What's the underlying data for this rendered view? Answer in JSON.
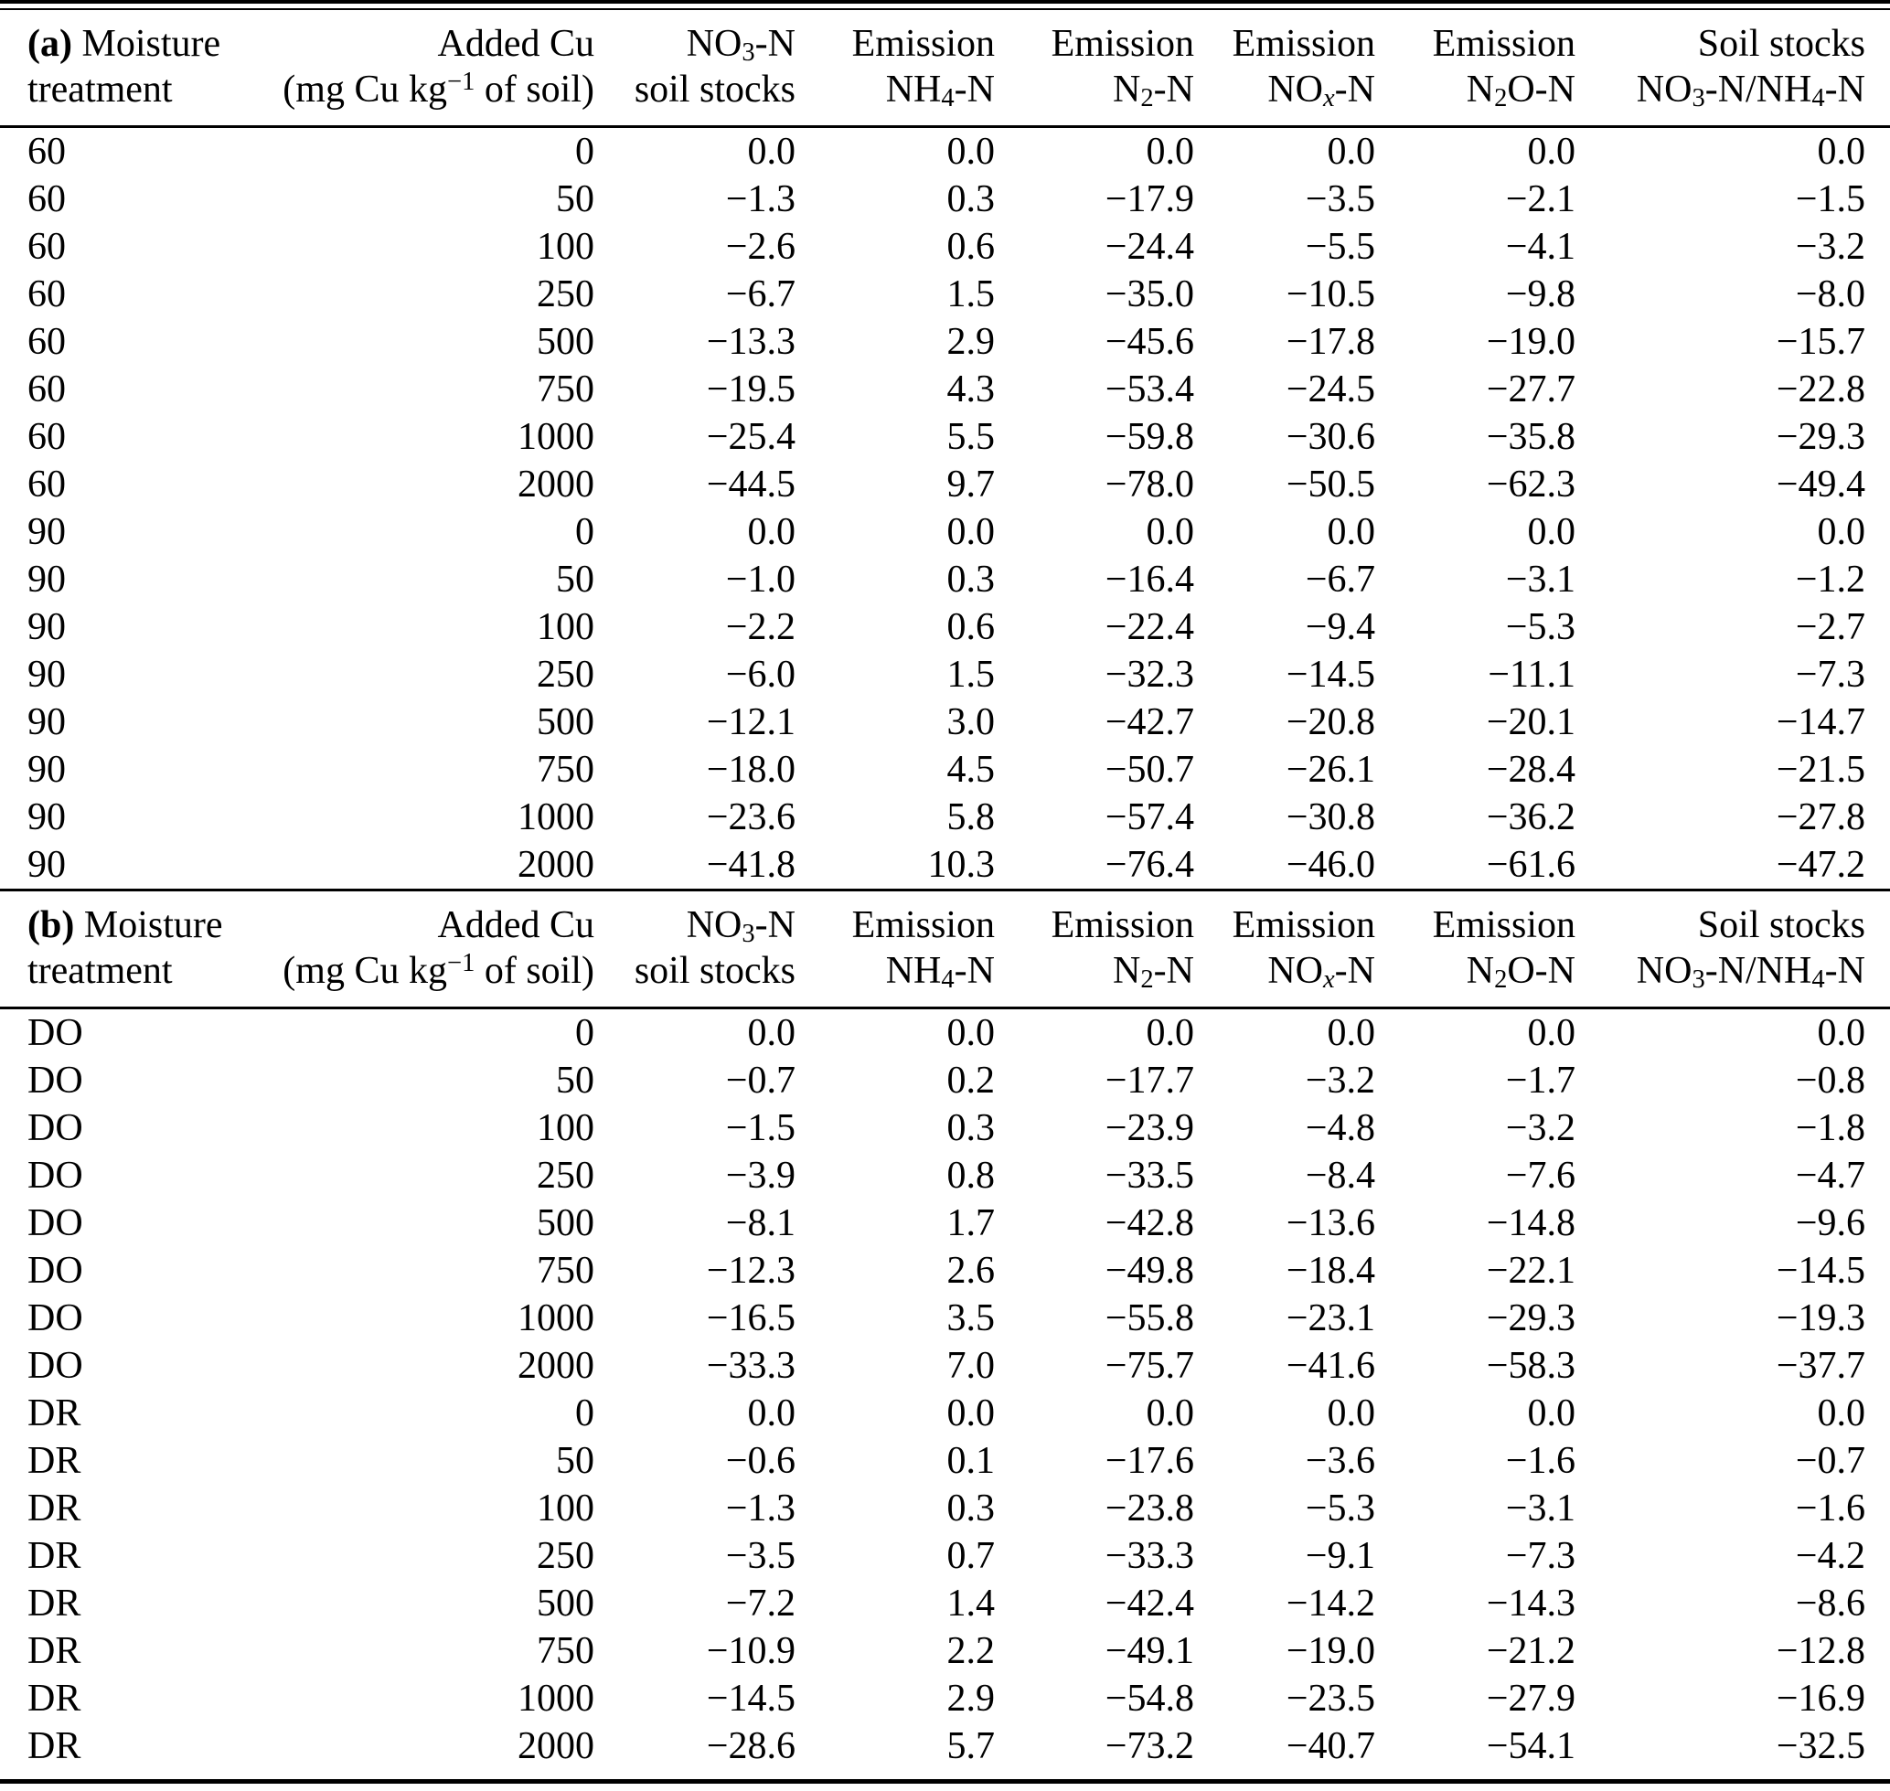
{
  "colors": {
    "text": "#000000",
    "background": "#ffffff",
    "rule": "#000000"
  },
  "tables": [
    {
      "panel": "a",
      "header": [
        {
          "line1": [
            {
              "t": "(a)",
              "s": "b"
            },
            {
              "t": " Moisture"
            }
          ],
          "line2": [
            {
              "t": "treatment"
            }
          ]
        },
        {
          "line1": [
            {
              "t": "Added Cu"
            }
          ],
          "line2": [
            {
              "t": "(mg Cu kg"
            },
            {
              "t": "−1",
              "s": "sup"
            },
            {
              "t": " of soil)"
            }
          ]
        },
        {
          "line1": [
            {
              "t": "NO"
            },
            {
              "t": "3",
              "s": "sub"
            },
            {
              "t": "-N"
            }
          ],
          "line2": [
            {
              "t": "soil stocks"
            }
          ]
        },
        {
          "line1": [
            {
              "t": "Emission"
            }
          ],
          "line2": [
            {
              "t": "NH"
            },
            {
              "t": "4",
              "s": "sub"
            },
            {
              "t": "-N"
            }
          ]
        },
        {
          "line1": [
            {
              "t": "Emission"
            }
          ],
          "line2": [
            {
              "t": "N"
            },
            {
              "t": "2",
              "s": "sub"
            },
            {
              "t": "-N"
            }
          ]
        },
        {
          "line1": [
            {
              "t": "Emission"
            }
          ],
          "line2": [
            {
              "t": "NO"
            },
            {
              "t": "x",
              "s": "subi"
            },
            {
              "t": "-N"
            }
          ]
        },
        {
          "line1": [
            {
              "t": "Emission"
            }
          ],
          "line2": [
            {
              "t": "N"
            },
            {
              "t": "2",
              "s": "sub"
            },
            {
              "t": "O-N"
            }
          ]
        },
        {
          "line1": [
            {
              "t": "Soil stocks"
            }
          ],
          "line2": [
            {
              "t": "NO"
            },
            {
              "t": "3",
              "s": "sub"
            },
            {
              "t": "-N/NH"
            },
            {
              "t": "4",
              "s": "sub"
            },
            {
              "t": "-N"
            }
          ]
        }
      ],
      "rows": [
        [
          "60",
          "0",
          "0.0",
          "0.0",
          "0.0",
          "0.0",
          "0.0",
          "0.0"
        ],
        [
          "60",
          "50",
          "−1.3",
          "0.3",
          "−17.9",
          "−3.5",
          "−2.1",
          "−1.5"
        ],
        [
          "60",
          "100",
          "−2.6",
          "0.6",
          "−24.4",
          "−5.5",
          "−4.1",
          "−3.2"
        ],
        [
          "60",
          "250",
          "−6.7",
          "1.5",
          "−35.0",
          "−10.5",
          "−9.8",
          "−8.0"
        ],
        [
          "60",
          "500",
          "−13.3",
          "2.9",
          "−45.6",
          "−17.8",
          "−19.0",
          "−15.7"
        ],
        [
          "60",
          "750",
          "−19.5",
          "4.3",
          "−53.4",
          "−24.5",
          "−27.7",
          "−22.8"
        ],
        [
          "60",
          "1000",
          "−25.4",
          "5.5",
          "−59.8",
          "−30.6",
          "−35.8",
          "−29.3"
        ],
        [
          "60",
          "2000",
          "−44.5",
          "9.7",
          "−78.0",
          "−50.5",
          "−62.3",
          "−49.4"
        ],
        [
          "90",
          "0",
          "0.0",
          "0.0",
          "0.0",
          "0.0",
          "0.0",
          "0.0"
        ],
        [
          "90",
          "50",
          "−1.0",
          "0.3",
          "−16.4",
          "−6.7",
          "−3.1",
          "−1.2"
        ],
        [
          "90",
          "100",
          "−2.2",
          "0.6",
          "−22.4",
          "−9.4",
          "−5.3",
          "−2.7"
        ],
        [
          "90",
          "250",
          "−6.0",
          "1.5",
          "−32.3",
          "−14.5",
          "−11.1",
          "−7.3"
        ],
        [
          "90",
          "500",
          "−12.1",
          "3.0",
          "−42.7",
          "−20.8",
          "−20.1",
          "−14.7"
        ],
        [
          "90",
          "750",
          "−18.0",
          "4.5",
          "−50.7",
          "−26.1",
          "−28.4",
          "−21.5"
        ],
        [
          "90",
          "1000",
          "−23.6",
          "5.8",
          "−57.4",
          "−30.8",
          "−36.2",
          "−27.8"
        ],
        [
          "90",
          "2000",
          "−41.8",
          "10.3",
          "−76.4",
          "−46.0",
          "−61.6",
          "−47.2"
        ]
      ]
    },
    {
      "panel": "b",
      "header": [
        {
          "line1": [
            {
              "t": "(b)",
              "s": "b"
            },
            {
              "t": " Moisture"
            }
          ],
          "line2": [
            {
              "t": "treatment"
            }
          ]
        },
        {
          "line1": [
            {
              "t": "Added Cu"
            }
          ],
          "line2": [
            {
              "t": "(mg Cu kg"
            },
            {
              "t": "−1",
              "s": "sup"
            },
            {
              "t": " of soil)"
            }
          ]
        },
        {
          "line1": [
            {
              "t": "NO"
            },
            {
              "t": "3",
              "s": "sub"
            },
            {
              "t": "-N"
            }
          ],
          "line2": [
            {
              "t": "soil stocks"
            }
          ]
        },
        {
          "line1": [
            {
              "t": "Emission"
            }
          ],
          "line2": [
            {
              "t": "NH"
            },
            {
              "t": "4",
              "s": "sub"
            },
            {
              "t": "-N"
            }
          ]
        },
        {
          "line1": [
            {
              "t": "Emission"
            }
          ],
          "line2": [
            {
              "t": "N"
            },
            {
              "t": "2",
              "s": "sub"
            },
            {
              "t": "-N"
            }
          ]
        },
        {
          "line1": [
            {
              "t": "Emission"
            }
          ],
          "line2": [
            {
              "t": "NO"
            },
            {
              "t": "x",
              "s": "subi"
            },
            {
              "t": "-N"
            }
          ]
        },
        {
          "line1": [
            {
              "t": "Emission"
            }
          ],
          "line2": [
            {
              "t": "N"
            },
            {
              "t": "2",
              "s": "sub"
            },
            {
              "t": "O-N"
            }
          ]
        },
        {
          "line1": [
            {
              "t": "Soil stocks"
            }
          ],
          "line2": [
            {
              "t": "NO"
            },
            {
              "t": "3",
              "s": "sub"
            },
            {
              "t": "-N/NH"
            },
            {
              "t": "4",
              "s": "sub"
            },
            {
              "t": "-N"
            }
          ]
        }
      ],
      "rows": [
        [
          "DO",
          "0",
          "0.0",
          "0.0",
          "0.0",
          "0.0",
          "0.0",
          "0.0"
        ],
        [
          "DO",
          "50",
          "−0.7",
          "0.2",
          "−17.7",
          "−3.2",
          "−1.7",
          "−0.8"
        ],
        [
          "DO",
          "100",
          "−1.5",
          "0.3",
          "−23.9",
          "−4.8",
          "−3.2",
          "−1.8"
        ],
        [
          "DO",
          "250",
          "−3.9",
          "0.8",
          "−33.5",
          "−8.4",
          "−7.6",
          "−4.7"
        ],
        [
          "DO",
          "500",
          "−8.1",
          "1.7",
          "−42.8",
          "−13.6",
          "−14.8",
          "−9.6"
        ],
        [
          "DO",
          "750",
          "−12.3",
          "2.6",
          "−49.8",
          "−18.4",
          "−22.1",
          "−14.5"
        ],
        [
          "DO",
          "1000",
          "−16.5",
          "3.5",
          "−55.8",
          "−23.1",
          "−29.3",
          "−19.3"
        ],
        [
          "DO",
          "2000",
          "−33.3",
          "7.0",
          "−75.7",
          "−41.6",
          "−58.3",
          "−37.7"
        ],
        [
          "DR",
          "0",
          "0.0",
          "0.0",
          "0.0",
          "0.0",
          "0.0",
          "0.0"
        ],
        [
          "DR",
          "50",
          "−0.6",
          "0.1",
          "−17.6",
          "−3.6",
          "−1.6",
          "−0.7"
        ],
        [
          "DR",
          "100",
          "−1.3",
          "0.3",
          "−23.8",
          "−5.3",
          "−3.1",
          "−1.6"
        ],
        [
          "DR",
          "250",
          "−3.5",
          "0.7",
          "−33.3",
          "−9.1",
          "−7.3",
          "−4.2"
        ],
        [
          "DR",
          "500",
          "−7.2",
          "1.4",
          "−42.4",
          "−14.2",
          "−14.3",
          "−8.6"
        ],
        [
          "DR",
          "750",
          "−10.9",
          "2.2",
          "−49.1",
          "−19.0",
          "−21.2",
          "−12.8"
        ],
        [
          "DR",
          "1000",
          "−14.5",
          "2.9",
          "−54.8",
          "−23.5",
          "−27.9",
          "−16.9"
        ],
        [
          "DR",
          "2000",
          "−28.6",
          "5.7",
          "−73.2",
          "−40.7",
          "−54.1",
          "−32.5"
        ]
      ]
    }
  ]
}
